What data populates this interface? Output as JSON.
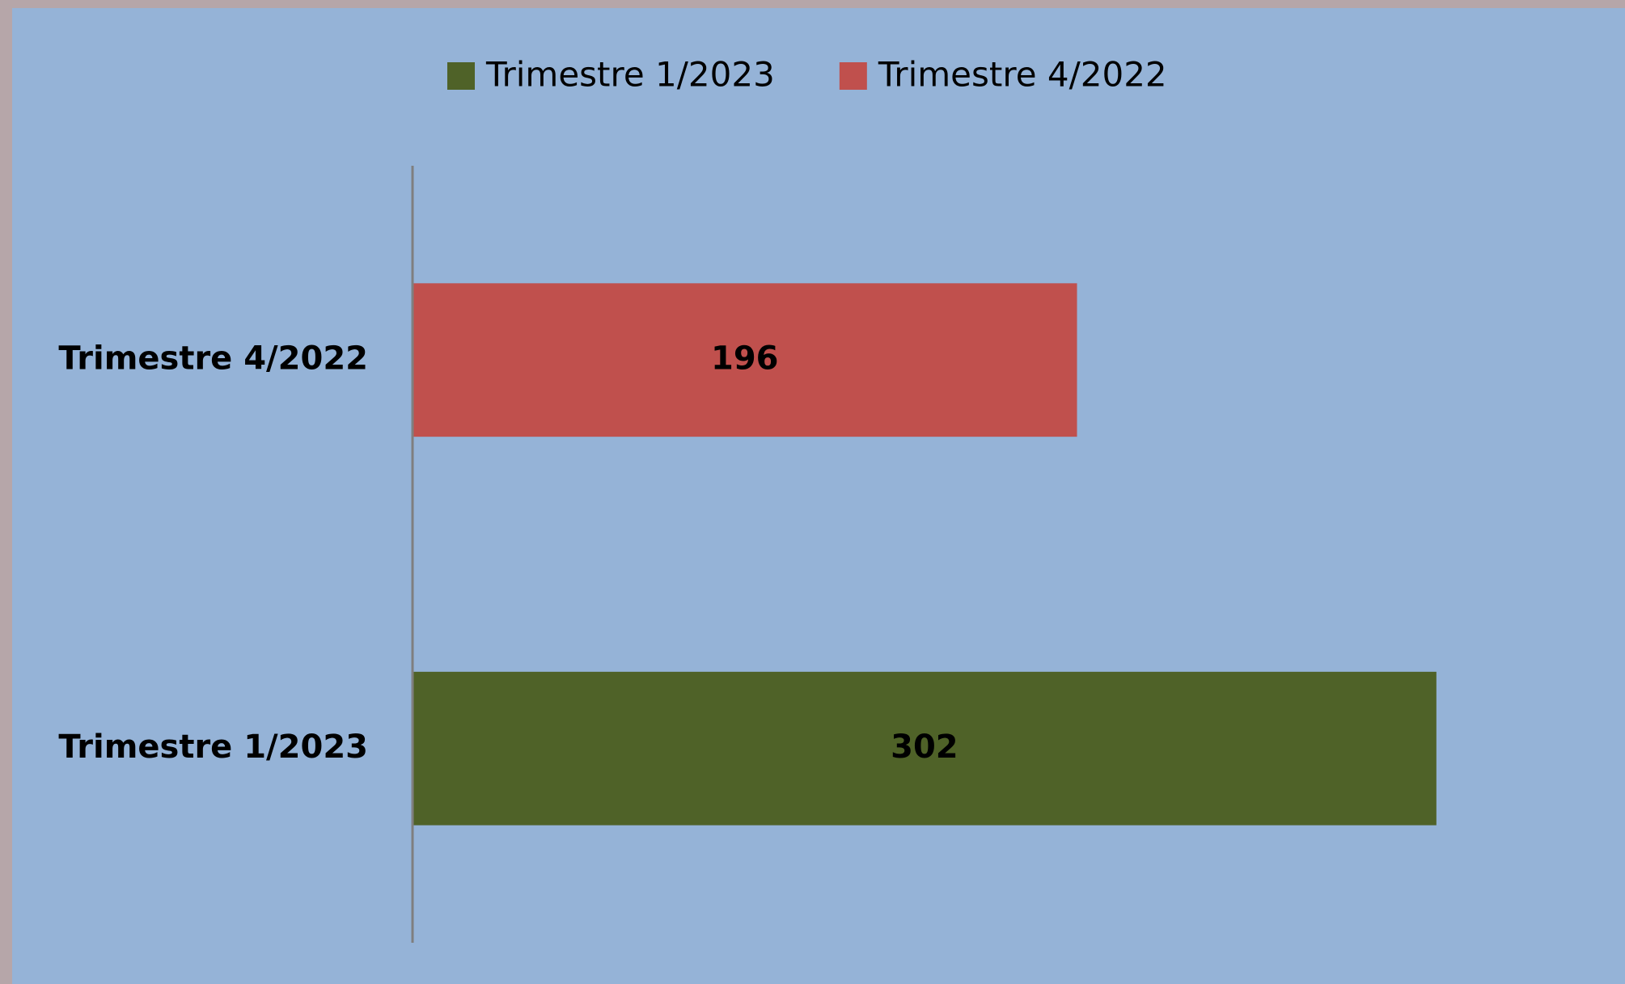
{
  "chart_data": {
    "type": "bar",
    "orientation": "horizontal",
    "categories": [
      "Trimestre 1/2023",
      "Trimestre 4/2022"
    ],
    "values": [
      302,
      196
    ],
    "colors": [
      "#4f6228",
      "#c0504d"
    ],
    "xlim": [
      0,
      350
    ],
    "legend": "top",
    "grid": false
  }
}
